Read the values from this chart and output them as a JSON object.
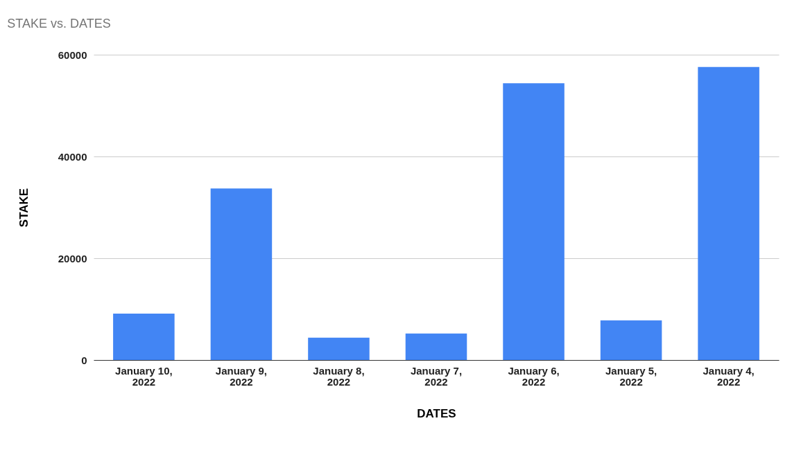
{
  "chart_data": {
    "type": "bar",
    "title": "STAKE vs. DATES",
    "xlabel": "DATES",
    "ylabel": "STAKE",
    "categories": [
      "January 10, 2022",
      "January 9, 2022",
      "January 8, 2022",
      "January 7, 2022",
      "January 6, 2022",
      "January 5, 2022",
      "January 4, 2022"
    ],
    "values": [
      9100,
      33700,
      4400,
      5200,
      54400,
      7800,
      57600
    ],
    "color": "#4285f4",
    "ylim": [
      0,
      60000
    ],
    "yticks": [
      0,
      20000,
      40000,
      60000
    ],
    "grid": "y"
  }
}
